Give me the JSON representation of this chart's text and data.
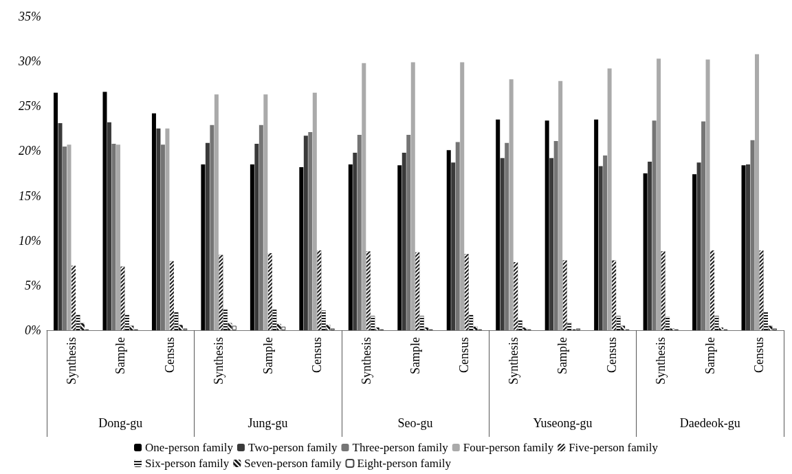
{
  "chart_data": {
    "type": "bar",
    "categories": [
      "Synthesis",
      "Sample",
      "Census",
      "Synthesis",
      "Sample",
      "Census",
      "Synthesis",
      "Sample",
      "Census",
      "Synthesis",
      "Sample",
      "Census",
      "Synthesis",
      "Sample",
      "Census"
    ],
    "annotations": [
      "Dong-gu",
      "Jung-gu",
      "Seo-gu",
      "Yuseong-gu",
      "Daedeok-gu"
    ],
    "series": [
      {
        "name": "One-person family",
        "color": "#000000",
        "values": [
          26.5,
          26.6,
          24.2,
          18.5,
          18.5,
          18.2,
          18.5,
          18.4,
          20.1,
          23.5,
          23.4,
          23.5,
          17.5,
          17.4,
          18.4
        ]
      },
      {
        "name": "Two-person family",
        "color": "#3a3a3a",
        "values": [
          23.1,
          23.2,
          22.5,
          20.9,
          20.8,
          21.7,
          19.8,
          19.8,
          18.7,
          19.2,
          19.2,
          18.3,
          18.8,
          18.7,
          18.5
        ]
      },
      {
        "name": "Three-person family",
        "color": "#757575",
        "values": [
          20.5,
          20.8,
          20.7,
          22.9,
          22.9,
          22.1,
          21.8,
          21.8,
          21.0,
          20.9,
          21.1,
          19.5,
          23.4,
          23.3,
          21.2
        ]
      },
      {
        "name": "Four-person family",
        "color": "#aaaaaa",
        "values": [
          20.7,
          20.7,
          22.5,
          26.3,
          26.3,
          26.5,
          29.8,
          29.9,
          29.9,
          28.0,
          27.8,
          29.2,
          30.3,
          30.2,
          30.8
        ]
      },
      {
        "name": "Five-person family",
        "color": "#1a1a1a",
        "values": [
          7.2,
          7.1,
          7.7,
          8.4,
          8.6,
          8.9,
          8.8,
          8.7,
          8.5,
          7.6,
          7.8,
          7.8,
          8.8,
          8.9,
          8.9
        ]
      },
      {
        "name": "Six-person family",
        "color": "#1a1a1a",
        "values": [
          1.7,
          1.7,
          2.0,
          2.3,
          2.3,
          2.2,
          1.6,
          1.6,
          1.7,
          1.1,
          0.9,
          1.6,
          1.5,
          1.6,
          2.0
        ]
      },
      {
        "name": "Seven-person family",
        "color": "#1a1a1a",
        "values": [
          0.8,
          0.5,
          0.6,
          0.8,
          0.7,
          0.6,
          0.3,
          0.3,
          0.4,
          0.3,
          0.1,
          0.5,
          0.2,
          0.3,
          0.5
        ]
      },
      {
        "name": "Eight-person family",
        "color": "#ffffff",
        "values": [
          0.1,
          0.1,
          0.2,
          0.5,
          0.4,
          0.2,
          0.1,
          0.1,
          0.1,
          0.1,
          0.2,
          0.1,
          0.1,
          0.1,
          0.2
        ]
      }
    ],
    "ylim": [
      0,
      35
    ],
    "yticks": [
      {
        "value": 0,
        "label": "0%"
      },
      {
        "value": 5,
        "label": "5%"
      },
      {
        "value": 10,
        "label": "10%"
      },
      {
        "value": 15,
        "label": "15%"
      },
      {
        "value": 20,
        "label": "20%"
      },
      {
        "value": 25,
        "label": "25%"
      },
      {
        "value": 30,
        "label": "30%"
      },
      {
        "value": 35,
        "label": "35%"
      }
    ],
    "grid": false,
    "legend": "bottom"
  }
}
